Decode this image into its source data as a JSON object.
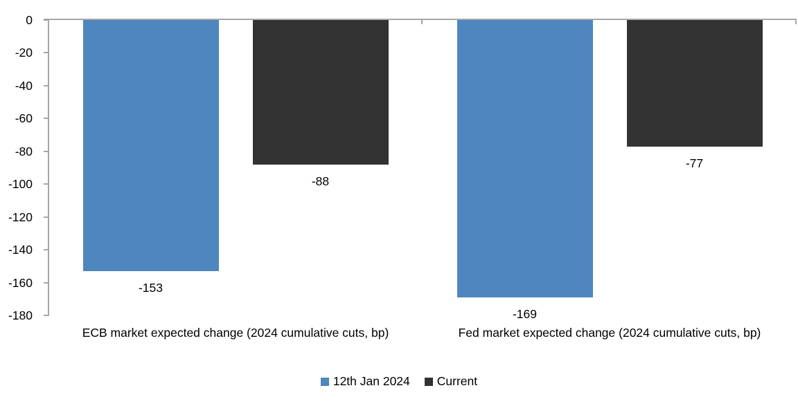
{
  "chart_data": {
    "type": "bar",
    "title": "",
    "xlabel": "",
    "ylabel": "",
    "categories": [
      "ECB market expected change (2024 cumulative cuts, bp)",
      "Fed market expected change (2024 cumulative cuts, bp)"
    ],
    "series": [
      {
        "name": "12th Jan 2024",
        "color": "#4E86BE",
        "values": [
          -153,
          -169
        ]
      },
      {
        "name": "Current",
        "color": "#323232",
        "values": [
          -88,
          -77
        ]
      }
    ],
    "data_labels": [
      "-153",
      "-88",
      "-169",
      "-77"
    ],
    "ylim": [
      -180,
      0
    ],
    "yticks": [
      0,
      -20,
      -40,
      -60,
      -80,
      -100,
      -120,
      -140,
      -160,
      -180
    ],
    "grid": false,
    "legend_position": "bottom",
    "axis_color": "#A6A6A6",
    "text_color": "#000000",
    "background_color": "#FFFFFF"
  }
}
